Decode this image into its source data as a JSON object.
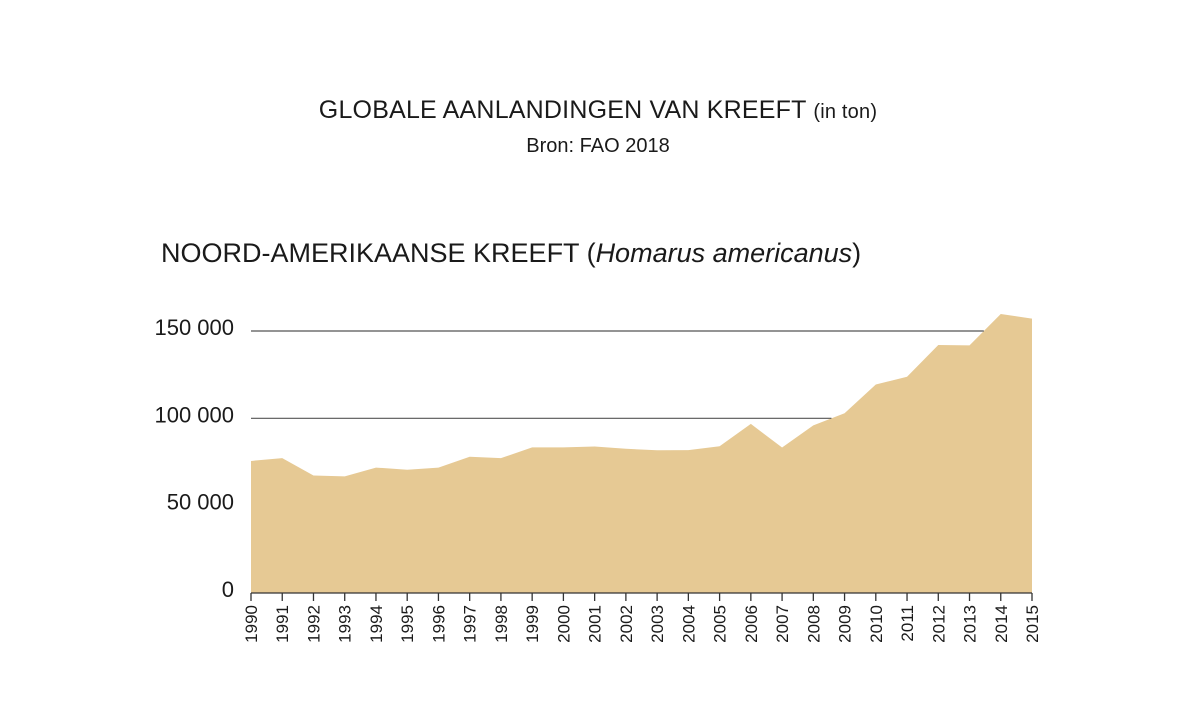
{
  "header": {
    "title": "GLOBALE AANLANDINGEN VAN KREEFT",
    "unit": "(in ton)",
    "source": "Bron: FAO 2018"
  },
  "chart_data": {
    "type": "area",
    "title_prefix": "NOORD-AMERIKAANSE KREEFT (",
    "title_species": "Homarus americanus",
    "title_suffix": ")",
    "x": [
      "1990",
      "1991",
      "1992",
      "1993",
      "1994",
      "1995",
      "1996",
      "1997",
      "1998",
      "1999",
      "2000",
      "2001",
      "2002",
      "2003",
      "2004",
      "2005",
      "2006",
      "2007",
      "2008",
      "2009",
      "2010",
      "2011",
      "2012",
      "2013",
      "2014",
      "2015"
    ],
    "series": [
      {
        "values": [
          75600,
          77200,
          67300,
          66800,
          71800,
          70600,
          71800,
          78000,
          77200,
          83400,
          83400,
          83900,
          82600,
          81700,
          81800,
          84000,
          96800,
          83300,
          96000,
          102900,
          119400,
          123800,
          142000,
          141800,
          159700,
          157100
        ],
        "color": "#e6c994"
      }
    ],
    "yticks": [
      0,
      50000,
      100000,
      150000
    ],
    "ytick_labels": [
      "0",
      "50 000",
      "100 000",
      "150 000"
    ],
    "gridlines": [
      100000,
      150000
    ],
    "ylim": [
      0,
      160000
    ]
  }
}
